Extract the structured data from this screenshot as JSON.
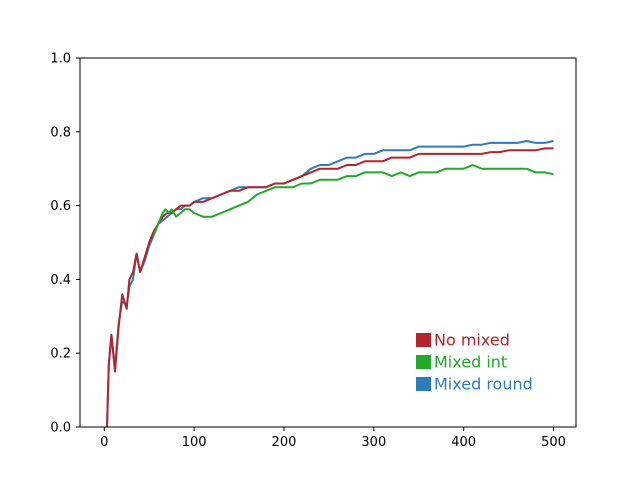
{
  "chart_data": {
    "type": "line",
    "title": "",
    "xlabel": "",
    "ylabel": "",
    "xlim": [
      -27,
      525
    ],
    "ylim": [
      0.0,
      1.0
    ],
    "xticks": [
      0,
      100,
      200,
      300,
      400,
      500
    ],
    "xtick_labels": [
      "0",
      "100",
      "200",
      "300",
      "400",
      "500"
    ],
    "yticks": [
      0.0,
      0.2,
      0.4,
      0.6,
      0.8,
      1.0
    ],
    "ytick_labels": [
      "0.0",
      "0.2",
      "0.4",
      "0.6",
      "0.8",
      "1.0"
    ],
    "grid": false,
    "legend_position": "lower-right",
    "series": [
      {
        "name": "Mixed round",
        "color": "#2f7db8",
        "x": [
          3,
          5,
          8,
          12,
          16,
          20,
          25,
          28,
          32,
          36,
          40,
          45,
          50,
          55,
          60,
          65,
          70,
          75,
          80,
          85,
          90,
          95,
          100,
          110,
          120,
          130,
          140,
          150,
          160,
          170,
          180,
          190,
          200,
          210,
          220,
          230,
          240,
          250,
          260,
          270,
          280,
          290,
          300,
          310,
          320,
          330,
          340,
          350,
          360,
          370,
          380,
          390,
          400,
          410,
          420,
          430,
          440,
          450,
          460,
          470,
          480,
          490,
          500
        ],
        "y": [
          0.0,
          0.17,
          0.25,
          0.16,
          0.28,
          0.34,
          0.33,
          0.38,
          0.4,
          0.47,
          0.42,
          0.45,
          0.49,
          0.52,
          0.55,
          0.56,
          0.57,
          0.58,
          0.59,
          0.59,
          0.6,
          0.6,
          0.61,
          0.62,
          0.62,
          0.63,
          0.64,
          0.65,
          0.65,
          0.65,
          0.65,
          0.66,
          0.66,
          0.67,
          0.68,
          0.7,
          0.71,
          0.71,
          0.72,
          0.73,
          0.73,
          0.74,
          0.74,
          0.75,
          0.75,
          0.75,
          0.75,
          0.76,
          0.76,
          0.76,
          0.76,
          0.76,
          0.76,
          0.765,
          0.765,
          0.77,
          0.77,
          0.77,
          0.77,
          0.775,
          0.77,
          0.77,
          0.775
        ]
      },
      {
        "name": "No mixed",
        "color": "#b2252b",
        "x": [
          3,
          5,
          8,
          12,
          16,
          20,
          25,
          28,
          32,
          36,
          40,
          45,
          50,
          55,
          60,
          65,
          70,
          75,
          80,
          85,
          90,
          95,
          100,
          110,
          120,
          130,
          140,
          150,
          160,
          170,
          180,
          190,
          200,
          210,
          220,
          230,
          240,
          250,
          260,
          270,
          280,
          290,
          300,
          310,
          320,
          330,
          340,
          350,
          360,
          370,
          380,
          390,
          400,
          410,
          420,
          430,
          440,
          450,
          460,
          470,
          480,
          490,
          500
        ],
        "y": [
          0.0,
          0.17,
          0.25,
          0.15,
          0.27,
          0.36,
          0.32,
          0.4,
          0.42,
          0.47,
          0.42,
          0.46,
          0.5,
          0.53,
          0.55,
          0.57,
          0.58,
          0.58,
          0.59,
          0.6,
          0.6,
          0.6,
          0.61,
          0.61,
          0.62,
          0.63,
          0.64,
          0.64,
          0.65,
          0.65,
          0.65,
          0.66,
          0.66,
          0.67,
          0.68,
          0.69,
          0.7,
          0.7,
          0.7,
          0.71,
          0.71,
          0.72,
          0.72,
          0.72,
          0.73,
          0.73,
          0.73,
          0.74,
          0.74,
          0.74,
          0.74,
          0.74,
          0.74,
          0.74,
          0.74,
          0.745,
          0.745,
          0.75,
          0.75,
          0.75,
          0.75,
          0.755,
          0.755
        ]
      },
      {
        "name": "Mixed int",
        "color": "#22a82a",
        "x": [
          55,
          60,
          65,
          68,
          72,
          75,
          80,
          85,
          90,
          95,
          100,
          110,
          120,
          130,
          140,
          150,
          160,
          170,
          180,
          190,
          200,
          210,
          220,
          230,
          240,
          250,
          260,
          270,
          280,
          290,
          300,
          310,
          320,
          330,
          340,
          350,
          360,
          370,
          380,
          390,
          400,
          410,
          420,
          430,
          440,
          450,
          460,
          470,
          480,
          490,
          500
        ],
        "y": [
          0.52,
          0.55,
          0.58,
          0.59,
          0.58,
          0.59,
          0.57,
          0.58,
          0.59,
          0.59,
          0.58,
          0.57,
          0.57,
          0.58,
          0.59,
          0.6,
          0.61,
          0.63,
          0.64,
          0.65,
          0.65,
          0.65,
          0.66,
          0.66,
          0.67,
          0.67,
          0.67,
          0.68,
          0.68,
          0.69,
          0.69,
          0.69,
          0.68,
          0.69,
          0.68,
          0.69,
          0.69,
          0.69,
          0.7,
          0.7,
          0.7,
          0.71,
          0.7,
          0.7,
          0.7,
          0.7,
          0.7,
          0.7,
          0.69,
          0.69,
          0.685
        ]
      }
    ],
    "legend": [
      {
        "label": "No mixed",
        "color": "#b2252b"
      },
      {
        "label": "Mixed int",
        "color": "#22a82a"
      },
      {
        "label": "Mixed round",
        "color": "#2f7db8"
      }
    ]
  }
}
